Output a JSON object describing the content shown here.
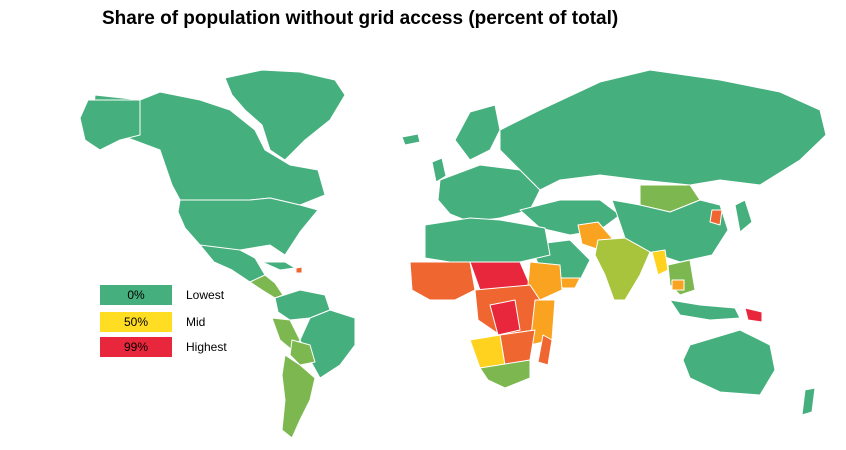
{
  "title": "Share of population without grid access (percent of total)",
  "legend": [
    {
      "value_label": "0%",
      "label": "Lowest",
      "color": "#45af7d"
    },
    {
      "value_label": "50%",
      "label": "Mid",
      "color": "#ffdd22"
    },
    {
      "value_label": "99%",
      "label": "Highest",
      "color": "#e8273c"
    }
  ],
  "palette": {
    "lowest": "#45af7d",
    "low": "#7cb84f",
    "low_mid": "#a8c43c",
    "mid": "#ffd21f",
    "mid_high": "#f9a320",
    "high": "#f06630",
    "highest": "#e8273c",
    "border": "#ffffff"
  }
}
